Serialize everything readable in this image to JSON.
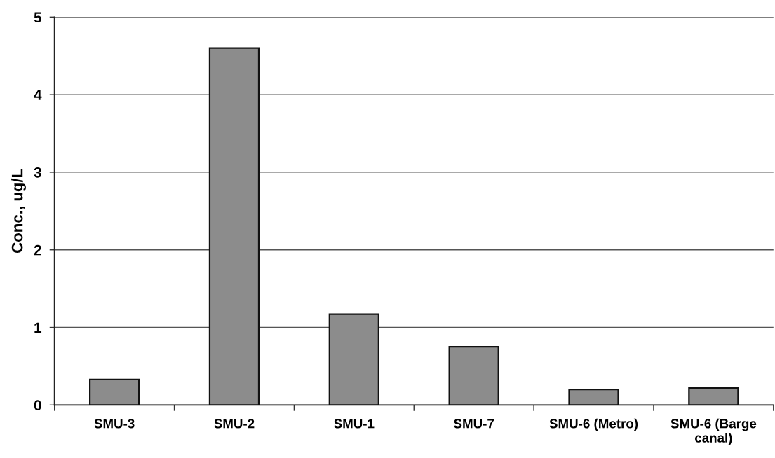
{
  "chart_data": {
    "type": "bar",
    "ylabel": "Conc., ug/L",
    "categories": [
      "SMU-3",
      "SMU-2",
      "SMU-1",
      "SMU-7",
      "SMU-6 (Metro)",
      "SMU-6 (Barge\ncanal)"
    ],
    "values": [
      0.33,
      4.6,
      1.17,
      0.75,
      0.2,
      0.22
    ],
    "color": "#8c8c8c",
    "ylim": [
      0,
      5
    ],
    "yticks": [
      0,
      1,
      2,
      3,
      4,
      5
    ],
    "grid": "y"
  }
}
